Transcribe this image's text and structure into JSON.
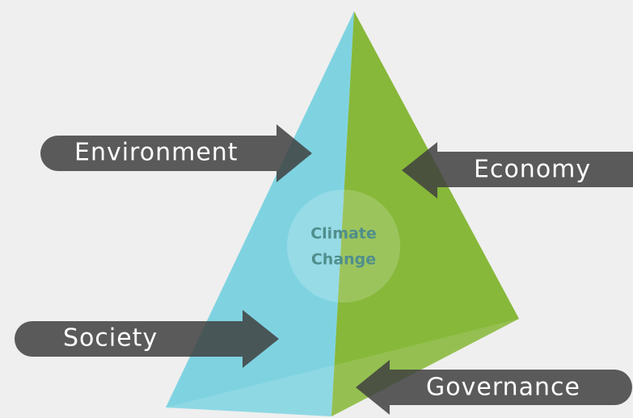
{
  "center": {
    "lines": [
      "Climate",
      "Change"
    ]
  },
  "arrows": [
    {
      "label": "Environment"
    },
    {
      "label": "Economy"
    },
    {
      "label": "Society"
    },
    {
      "label": "Governance"
    }
  ]
}
